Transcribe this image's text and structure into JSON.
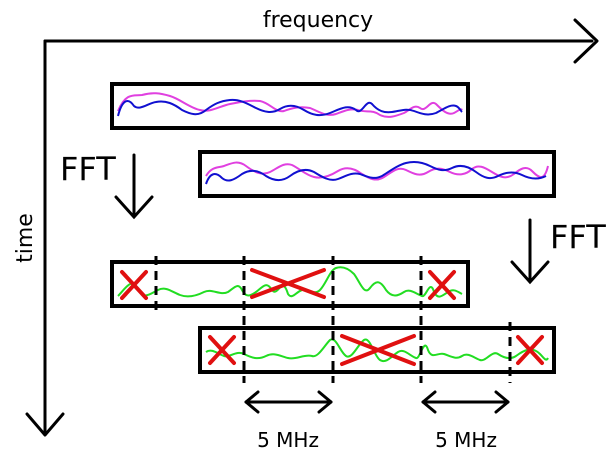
{
  "axes": {
    "x_label": "frequency",
    "y_label": "time"
  },
  "fft_labels": {
    "left": "FFT",
    "right": "FFT"
  },
  "bandwidth_labels": [
    "5 MHz",
    "5 MHz"
  ],
  "colors": {
    "stroke": "#000000",
    "signal_a": "#e040e0",
    "signal_b": "#1010d0",
    "spectrum": "#22dd22",
    "reject_mark": "#e01010"
  },
  "icons": {
    "reject_mark": "x-mark-icon",
    "fft_arrow": "arrow-down-icon"
  }
}
